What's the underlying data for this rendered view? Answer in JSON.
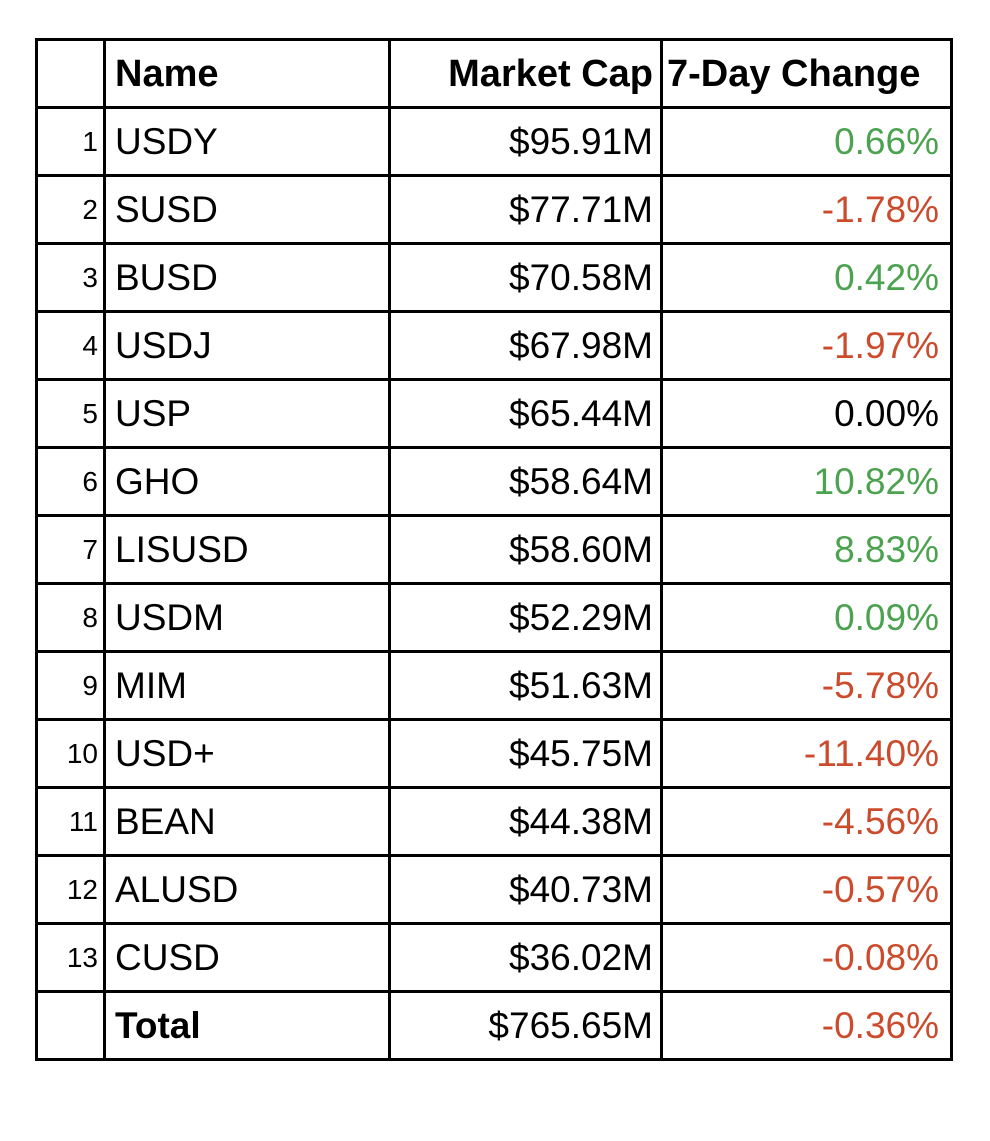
{
  "colors": {
    "positive": "#4ba24f",
    "negative": "#cc4b2c",
    "neutral": "#000000",
    "grid": "#000000",
    "cell_background": "#ffffff"
  },
  "table": {
    "headers": {
      "rank": "",
      "name": "Name",
      "market_cap": "Market Cap",
      "change": "7-Day Change"
    },
    "rows": [
      {
        "rank": "1",
        "name": "USDY",
        "market_cap": "$95.91M",
        "change": "0.66%",
        "direction": "up"
      },
      {
        "rank": "2",
        "name": "SUSD",
        "market_cap": "$77.71M",
        "change": "-1.78%",
        "direction": "down"
      },
      {
        "rank": "3",
        "name": "BUSD",
        "market_cap": "$70.58M",
        "change": "0.42%",
        "direction": "up"
      },
      {
        "rank": "4",
        "name": "USDJ",
        "market_cap": "$67.98M",
        "change": "-1.97%",
        "direction": "down"
      },
      {
        "rank": "5",
        "name": "USP",
        "market_cap": "$65.44M",
        "change": "0.00%",
        "direction": "flat"
      },
      {
        "rank": "6",
        "name": "GHO",
        "market_cap": "$58.64M",
        "change": "10.82%",
        "direction": "up"
      },
      {
        "rank": "7",
        "name": "LISUSD",
        "market_cap": "$58.60M",
        "change": "8.83%",
        "direction": "up"
      },
      {
        "rank": "8",
        "name": "USDM",
        "market_cap": "$52.29M",
        "change": "0.09%",
        "direction": "up"
      },
      {
        "rank": "9",
        "name": "MIM",
        "market_cap": "$51.63M",
        "change": "-5.78%",
        "direction": "down"
      },
      {
        "rank": "10",
        "name": "USD+",
        "market_cap": "$45.75M",
        "change": "-11.40%",
        "direction": "down"
      },
      {
        "rank": "11",
        "name": "BEAN",
        "market_cap": "$44.38M",
        "change": "-4.56%",
        "direction": "down"
      },
      {
        "rank": "12",
        "name": "ALUSD",
        "market_cap": "$40.73M",
        "change": "-0.57%",
        "direction": "down"
      },
      {
        "rank": "13",
        "name": "CUSD",
        "market_cap": "$36.02M",
        "change": "-0.08%",
        "direction": "down"
      }
    ],
    "total": {
      "rank": "",
      "name": "Total",
      "market_cap": "$765.65M",
      "change": "-0.36%",
      "direction": "down"
    }
  },
  "chart_data": {
    "type": "table",
    "columns": [
      "",
      "Name",
      "Market Cap",
      "7-Day Change"
    ],
    "rows": [
      [
        "1",
        "USDY",
        "$95.91M",
        "0.66%"
      ],
      [
        "2",
        "SUSD",
        "$77.71M",
        "-1.78%"
      ],
      [
        "3",
        "BUSD",
        "$70.58M",
        "0.42%"
      ],
      [
        "4",
        "USDJ",
        "$67.98M",
        "-1.97%"
      ],
      [
        "5",
        "USP",
        "$65.44M",
        "0.00%"
      ],
      [
        "6",
        "GHO",
        "$58.64M",
        "10.82%"
      ],
      [
        "7",
        "LISUSD",
        "$58.60M",
        "8.83%"
      ],
      [
        "8",
        "USDM",
        "$52.29M",
        "0.09%"
      ],
      [
        "9",
        "MIM",
        "$51.63M",
        "-5.78%"
      ],
      [
        "10",
        "USD+",
        "$45.75M",
        "-11.40%"
      ],
      [
        "11",
        "BEAN",
        "$44.38M",
        "-4.56%"
      ],
      [
        "12",
        "ALUSD",
        "$40.73M",
        "-0.57%"
      ],
      [
        "13",
        "CUSD",
        "$36.02M",
        "-0.08%"
      ]
    ],
    "total_row": [
      "",
      "Total",
      "$765.65M",
      "-0.36%"
    ],
    "market_cap_values_musd": [
      95.91,
      77.71,
      70.58,
      67.98,
      65.44,
      58.64,
      58.6,
      52.29,
      51.63,
      45.75,
      44.38,
      40.73,
      36.02
    ],
    "change_pct_values": [
      0.66,
      -1.78,
      0.42,
      -1.97,
      0.0,
      10.82,
      8.83,
      0.09,
      -5.78,
      -11.4,
      -4.56,
      -0.57,
      -0.08
    ],
    "total_market_cap_musd": 765.65,
    "total_change_pct": -0.36,
    "notes": "positive changes green, negative changes red, zero black"
  }
}
